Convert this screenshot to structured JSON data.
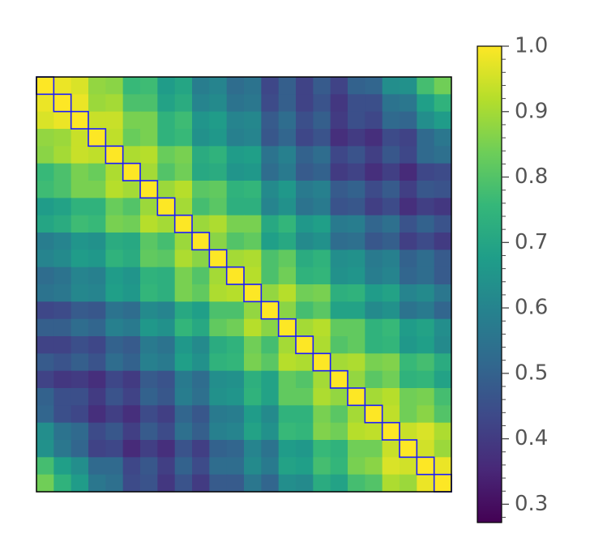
{
  "chart_data": {
    "type": "heatmap",
    "colormap": "viridis",
    "vlim": [
      0.272,
      1.0
    ],
    "box_color": "#1a1aff",
    "cticks": [
      {
        "value": 1.0,
        "label": "1.0"
      },
      0.9,
      0.8,
      0.7,
      0.6,
      0.5,
      0.4,
      0.3
    ],
    "cticks_minor": [
      0.28,
      0.32,
      0.34,
      0.36,
      0.38,
      0.42,
      0.44,
      0.46,
      0.48,
      0.52,
      0.54,
      0.56,
      0.58,
      0.62,
      0.64,
      0.66,
      0.68,
      0.72,
      0.74,
      0.76,
      0.78,
      0.82,
      0.84,
      0.86,
      0.88,
      0.92,
      0.94,
      0.96,
      0.98
    ],
    "z": [
      [
        1,
        0.98,
        0.96,
        0.88,
        0.87,
        0.76,
        0.77,
        0.67,
        0.7,
        0.58,
        0.6,
        0.53,
        0.55,
        0.43,
        0.49,
        0.42,
        0.48,
        0.42,
        0.5,
        0.51,
        0.63,
        0.64,
        0.78,
        0.84
      ],
      [
        0.98,
        1,
        0.98,
        0.89,
        0.9,
        0.79,
        0.79,
        0.69,
        0.72,
        0.6,
        0.62,
        0.55,
        0.56,
        0.44,
        0.49,
        0.42,
        0.46,
        0.39,
        0.45,
        0.45,
        0.55,
        0.56,
        0.68,
        0.74
      ],
      [
        0.96,
        0.98,
        1,
        0.94,
        0.94,
        0.85,
        0.85,
        0.74,
        0.77,
        0.65,
        0.67,
        0.6,
        0.61,
        0.48,
        0.53,
        0.45,
        0.49,
        0.4,
        0.45,
        0.43,
        0.52,
        0.51,
        0.63,
        0.67
      ],
      [
        0.88,
        0.89,
        0.94,
        1,
        0.93,
        0.83,
        0.85,
        0.74,
        0.76,
        0.64,
        0.66,
        0.59,
        0.6,
        0.47,
        0.51,
        0.43,
        0.46,
        0.37,
        0.4,
        0.37,
        0.44,
        0.42,
        0.52,
        0.56
      ],
      [
        0.87,
        0.9,
        0.94,
        0.93,
        1,
        0.91,
        0.92,
        0.83,
        0.85,
        0.72,
        0.74,
        0.67,
        0.68,
        0.55,
        0.59,
        0.5,
        0.53,
        0.43,
        0.46,
        0.41,
        0.47,
        0.43,
        0.52,
        0.54
      ],
      [
        0.76,
        0.79,
        0.85,
        0.83,
        0.91,
        1,
        0.9,
        0.8,
        0.84,
        0.71,
        0.72,
        0.65,
        0.66,
        0.53,
        0.57,
        0.48,
        0.5,
        0.4,
        0.42,
        0.37,
        0.41,
        0.36,
        0.43,
        0.44
      ],
      [
        0.77,
        0.79,
        0.85,
        0.85,
        0.92,
        0.9,
        1,
        0.89,
        0.92,
        0.81,
        0.82,
        0.74,
        0.75,
        0.62,
        0.66,
        0.57,
        0.59,
        0.48,
        0.5,
        0.44,
        0.48,
        0.41,
        0.47,
        0.46
      ],
      [
        0.67,
        0.69,
        0.74,
        0.74,
        0.83,
        0.8,
        0.89,
        1,
        0.9,
        0.78,
        0.81,
        0.73,
        0.73,
        0.6,
        0.64,
        0.55,
        0.57,
        0.46,
        0.47,
        0.41,
        0.44,
        0.37,
        0.41,
        0.39
      ],
      [
        0.7,
        0.72,
        0.77,
        0.76,
        0.85,
        0.84,
        0.92,
        0.9,
        1,
        0.89,
        0.91,
        0.85,
        0.85,
        0.71,
        0.75,
        0.66,
        0.68,
        0.57,
        0.58,
        0.51,
        0.54,
        0.46,
        0.5,
        0.46
      ],
      [
        0.58,
        0.6,
        0.65,
        0.64,
        0.72,
        0.71,
        0.81,
        0.78,
        0.89,
        1,
        0.87,
        0.8,
        0.82,
        0.68,
        0.71,
        0.62,
        0.64,
        0.53,
        0.54,
        0.47,
        0.49,
        0.41,
        0.44,
        0.4
      ],
      [
        0.6,
        0.62,
        0.67,
        0.66,
        0.74,
        0.72,
        0.82,
        0.81,
        0.91,
        0.87,
        1,
        0.9,
        0.91,
        0.79,
        0.82,
        0.72,
        0.74,
        0.63,
        0.64,
        0.57,
        0.59,
        0.5,
        0.53,
        0.48
      ],
      [
        0.53,
        0.55,
        0.6,
        0.59,
        0.67,
        0.65,
        0.74,
        0.73,
        0.85,
        0.8,
        0.9,
        1,
        0.92,
        0.79,
        0.84,
        0.74,
        0.75,
        0.64,
        0.65,
        0.58,
        0.6,
        0.51,
        0.53,
        0.48
      ],
      [
        0.55,
        0.56,
        0.61,
        0.6,
        0.68,
        0.66,
        0.75,
        0.73,
        0.85,
        0.82,
        0.91,
        0.92,
        1,
        0.88,
        0.92,
        0.84,
        0.85,
        0.73,
        0.74,
        0.67,
        0.69,
        0.6,
        0.62,
        0.56
      ],
      [
        0.43,
        0.44,
        0.48,
        0.47,
        0.55,
        0.53,
        0.62,
        0.6,
        0.71,
        0.68,
        0.79,
        0.79,
        0.88,
        1,
        0.87,
        0.78,
        0.81,
        0.69,
        0.69,
        0.62,
        0.64,
        0.55,
        0.57,
        0.51
      ],
      [
        0.49,
        0.49,
        0.53,
        0.51,
        0.59,
        0.57,
        0.66,
        0.64,
        0.75,
        0.71,
        0.82,
        0.84,
        0.92,
        0.87,
        1,
        0.9,
        0.92,
        0.82,
        0.82,
        0.74,
        0.76,
        0.67,
        0.69,
        0.63
      ],
      [
        0.42,
        0.42,
        0.45,
        0.43,
        0.5,
        0.48,
        0.57,
        0.55,
        0.66,
        0.62,
        0.72,
        0.74,
        0.84,
        0.78,
        0.9,
        1,
        0.91,
        0.8,
        0.82,
        0.74,
        0.75,
        0.66,
        0.68,
        0.62
      ],
      [
        0.48,
        0.46,
        0.49,
        0.46,
        0.53,
        0.5,
        0.59,
        0.57,
        0.68,
        0.64,
        0.74,
        0.75,
        0.85,
        0.81,
        0.92,
        0.91,
        1,
        0.9,
        0.91,
        0.85,
        0.86,
        0.76,
        0.78,
        0.72
      ],
      [
        0.42,
        0.39,
        0.4,
        0.37,
        0.43,
        0.4,
        0.48,
        0.46,
        0.57,
        0.53,
        0.63,
        0.64,
        0.73,
        0.69,
        0.82,
        0.8,
        0.9,
        1,
        0.88,
        0.81,
        0.84,
        0.74,
        0.75,
        0.69
      ],
      [
        0.5,
        0.45,
        0.45,
        0.4,
        0.46,
        0.42,
        0.5,
        0.47,
        0.58,
        0.54,
        0.64,
        0.65,
        0.74,
        0.69,
        0.82,
        0.82,
        0.91,
        0.88,
        1,
        0.9,
        0.92,
        0.84,
        0.85,
        0.78
      ],
      [
        0.51,
        0.45,
        0.43,
        0.37,
        0.41,
        0.37,
        0.44,
        0.41,
        0.51,
        0.47,
        0.57,
        0.58,
        0.67,
        0.62,
        0.74,
        0.74,
        0.85,
        0.81,
        0.9,
        1,
        0.93,
        0.84,
        0.87,
        0.8
      ],
      [
        0.63,
        0.55,
        0.52,
        0.44,
        0.47,
        0.41,
        0.48,
        0.44,
        0.54,
        0.49,
        0.59,
        0.6,
        0.69,
        0.64,
        0.76,
        0.75,
        0.86,
        0.84,
        0.92,
        0.93,
        1,
        0.94,
        0.96,
        0.91
      ],
      [
        0.64,
        0.56,
        0.51,
        0.42,
        0.43,
        0.36,
        0.41,
        0.37,
        0.46,
        0.41,
        0.5,
        0.51,
        0.6,
        0.55,
        0.67,
        0.66,
        0.76,
        0.74,
        0.84,
        0.84,
        0.94,
        1,
        0.95,
        0.89
      ],
      [
        0.78,
        0.68,
        0.63,
        0.52,
        0.52,
        0.43,
        0.47,
        0.41,
        0.5,
        0.44,
        0.53,
        0.53,
        0.62,
        0.57,
        0.69,
        0.68,
        0.78,
        0.75,
        0.85,
        0.87,
        0.96,
        0.95,
        1,
        0.98
      ],
      [
        0.84,
        0.74,
        0.67,
        0.56,
        0.54,
        0.44,
        0.46,
        0.39,
        0.46,
        0.4,
        0.48,
        0.48,
        0.56,
        0.51,
        0.63,
        0.62,
        0.72,
        0.69,
        0.78,
        0.8,
        0.91,
        0.89,
        0.98,
        1
      ]
    ]
  }
}
